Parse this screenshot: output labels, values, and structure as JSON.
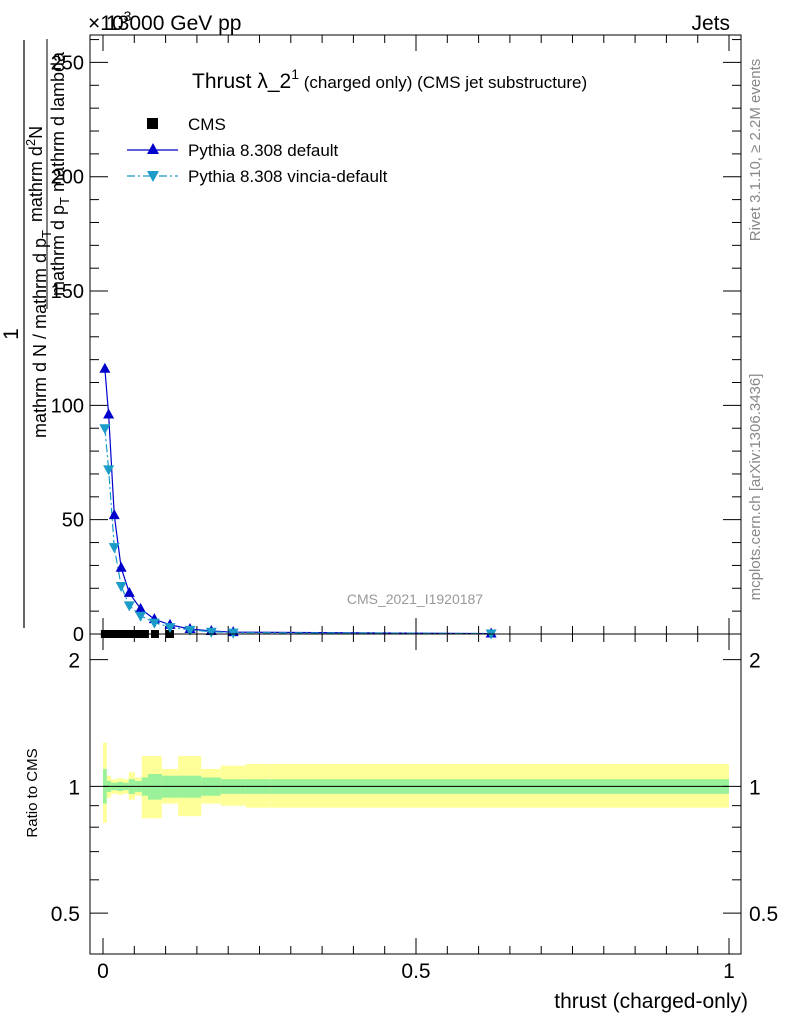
{
  "header": {
    "energy_label": "13000 GeV pp",
    "process_label": "Jets",
    "exponent_label": "×10",
    "exponent_power": "3"
  },
  "side_labels": {
    "rivet": "Rivet 3.1.10, ≥ 2.2M events",
    "mcplots": "mcplots.cern.ch [arXiv:1306.3436]"
  },
  "analysis_id": "CMS_2021_I1920187",
  "chart_data": [
    {
      "panel": "main",
      "type": "line",
      "title_main": "Thrust λ_2",
      "title_sup": "1",
      "title_rest": " (charged only) (CMS jet substructure)",
      "ylabel": {
        "numerator_1": "1",
        "denominator_1": "mathrm d N / mathrm d p",
        "denominator_1_sub": "T",
        "numerator_2": "mathrm d",
        "numerator_2_sup": "2",
        "numerator_2_rest": "N",
        "denominator_2": "mathrm d p",
        "denominator_2_sub": "T",
        "denominator_2_rest": " mathrm d lambda"
      },
      "xlim": [
        0,
        1
      ],
      "ylim": [
        0,
        262
      ],
      "y_unit_note": "values ×10^3",
      "y_ticks": [
        0,
        50,
        100,
        150,
        200,
        250
      ],
      "y_tick_labels": [
        "0",
        "50",
        "100",
        "150",
        "200",
        "250"
      ],
      "legend": {
        "position": "top-left",
        "entries": [
          "CMS",
          "Pythia 8.308 default",
          "Pythia 8.308 vincia-default"
        ]
      },
      "series": [
        {
          "name": "CMS",
          "marker": "square",
          "color": "#000000",
          "x": [
            0.003,
            0.01,
            0.018,
            0.027,
            0.036,
            0.046,
            0.056,
            0.067,
            0.083,
            0.107
          ],
          "y": [
            0,
            0,
            0,
            0,
            0,
            0,
            0,
            0,
            0,
            0
          ]
        },
        {
          "name": "Pythia 8.308 default",
          "marker": "triangle-up",
          "color": "#0000cc",
          "line": "solid",
          "x": [
            0.003,
            0.009,
            0.018,
            0.029,
            0.042,
            0.06,
            0.082,
            0.107,
            0.139,
            0.173,
            0.208,
            0.62
          ],
          "y": [
            116,
            96,
            52,
            29,
            18,
            11,
            6.5,
            4,
            2.2,
            1.3,
            0.8,
            0.2
          ]
        },
        {
          "name": "Pythia 8.308 vincia-default",
          "marker": "triangle-down",
          "color": "#1a9bc8",
          "line": "dashdot",
          "x": [
            0.003,
            0.009,
            0.018,
            0.029,
            0.042,
            0.06,
            0.082,
            0.107,
            0.139,
            0.173,
            0.208,
            0.62
          ],
          "y": [
            90,
            72,
            38,
            21,
            12.5,
            8,
            5,
            3,
            1.8,
            1.0,
            0.6,
            0.2
          ]
        }
      ]
    },
    {
      "panel": "ratio",
      "type": "area",
      "ylabel": "Ratio to CMS",
      "xlabel": "thrust (charged-only)",
      "xlim": [
        0,
        1
      ],
      "ylim": [
        0.4,
        2.3
      ],
      "y_scale": "log",
      "y_ticks": [
        0.5,
        1,
        2
      ],
      "y_tick_labels": [
        "0.5",
        "1",
        "2"
      ],
      "x_ticks": [
        0,
        0.5,
        1
      ],
      "x_tick_labels": [
        "0",
        "0.5",
        "1"
      ],
      "reference_line": 1,
      "band_edges": [
        0,
        0.006,
        0.013,
        0.023,
        0.032,
        0.041,
        0.051,
        0.062,
        0.072,
        0.094,
        0.12,
        0.157,
        0.188,
        0.228,
        0.268,
        1
      ],
      "stat_band": [
        [
          0.91,
          1.1
        ],
        [
          0.97,
          1.03
        ],
        [
          0.98,
          1.02
        ],
        [
          0.975,
          1.025
        ],
        [
          0.98,
          1.02
        ],
        [
          0.96,
          1.04
        ],
        [
          0.97,
          1.03
        ],
        [
          0.95,
          1.05
        ],
        [
          0.93,
          1.07
        ],
        [
          0.94,
          1.06
        ],
        [
          0.94,
          1.06
        ],
        [
          0.95,
          1.05
        ],
        [
          0.96,
          1.04
        ],
        [
          0.96,
          1.04
        ],
        [
          0.96,
          1.04
        ]
      ],
      "total_band": [
        [
          0.82,
          1.27
        ],
        [
          0.94,
          1.06
        ],
        [
          0.96,
          1.04
        ],
        [
          0.955,
          1.045
        ],
        [
          0.96,
          1.04
        ],
        [
          0.93,
          1.08
        ],
        [
          0.95,
          1.05
        ],
        [
          0.84,
          1.18
        ],
        [
          0.84,
          1.18
        ],
        [
          0.91,
          1.1
        ],
        [
          0.85,
          1.18
        ],
        [
          0.91,
          1.1
        ],
        [
          0.9,
          1.12
        ],
        [
          0.89,
          1.13
        ],
        [
          0.89,
          1.13
        ]
      ],
      "colors": {
        "stat": "#99f199",
        "total": "#ffff99"
      }
    }
  ]
}
